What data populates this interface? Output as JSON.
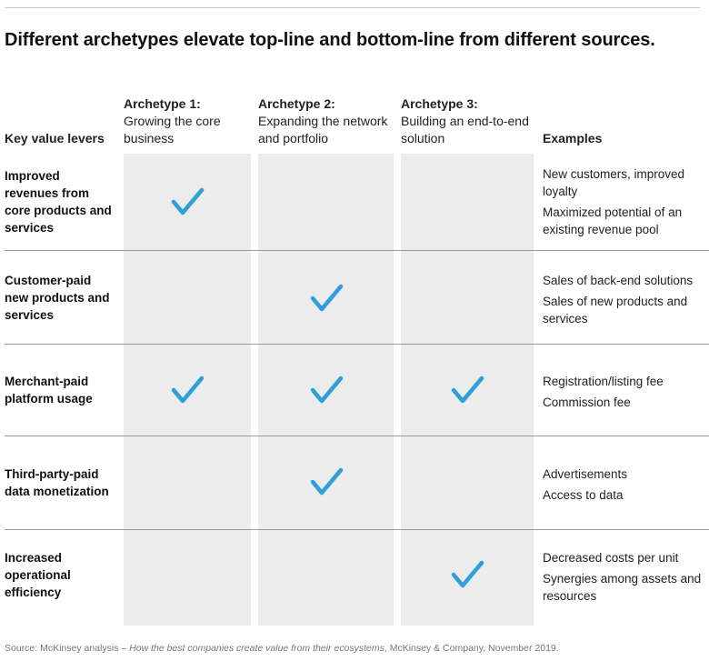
{
  "title": "Different archetypes elevate top-line and bottom-line from different sources.",
  "headers": {
    "levers": "Key value levers",
    "archetypes": [
      {
        "name": "Archetype 1:",
        "desc": "Growing the core business"
      },
      {
        "name": "Archetype 2:",
        "desc": "Expanding the network and portfolio"
      },
      {
        "name": "Archetype 3:",
        "desc": "Building an end-to-end solution"
      }
    ],
    "examples": "Examples"
  },
  "rows": [
    {
      "lever": "Improved revenues from core products and services",
      "checks": [
        true,
        false,
        false
      ],
      "examples": [
        "New customers, improved loyalty",
        "Maximized potential of an existing revenue pool"
      ]
    },
    {
      "lever": "Customer-paid new products and services",
      "checks": [
        false,
        true,
        false
      ],
      "examples": [
        "Sales of back-end solutions",
        "Sales of new products and services"
      ]
    },
    {
      "lever": "Merchant-paid platform usage",
      "checks": [
        true,
        true,
        true
      ],
      "examples": [
        "Registration/listing fee",
        "Commission fee"
      ]
    },
    {
      "lever": "Third-party-paid data monetization",
      "checks": [
        false,
        true,
        false
      ],
      "examples": [
        "Advertisements",
        "Access to data"
      ]
    },
    {
      "lever": "Increased operational efficiency",
      "checks": [
        false,
        false,
        true
      ],
      "examples": [
        "Decreased costs per unit",
        "Synergies among assets and resources"
      ]
    }
  ],
  "source": {
    "prefix": "Source: McKinsey analysis – ",
    "publication": "How the best companies create value from their ecosystems",
    "suffix": ", McKinsey & Company, November 2019."
  },
  "colors": {
    "check": "#2f9fd8",
    "column_bg": "#ececec"
  }
}
